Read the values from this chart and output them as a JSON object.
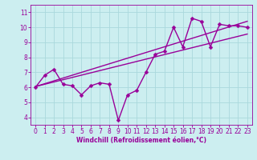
{
  "background_color": "#cceef0",
  "grid_color": "#aad8dc",
  "line_color": "#990099",
  "xlim": [
    -0.5,
    23.5
  ],
  "ylim": [
    3.5,
    11.5
  ],
  "yticks": [
    4,
    5,
    6,
    7,
    8,
    9,
    10,
    11
  ],
  "xticks": [
    0,
    1,
    2,
    3,
    4,
    5,
    6,
    7,
    8,
    9,
    10,
    11,
    12,
    13,
    14,
    15,
    16,
    17,
    18,
    19,
    20,
    21,
    22,
    23
  ],
  "xlabel": "Windchill (Refroidissement éolien,°C)",
  "scatter_x": [
    0,
    1,
    2,
    3,
    4,
    5,
    6,
    7,
    8,
    9,
    10,
    11,
    12,
    13,
    14,
    15,
    16,
    17,
    18,
    19,
    20,
    21,
    22,
    23
  ],
  "scatter_y": [
    6.0,
    6.8,
    7.2,
    6.2,
    6.1,
    5.5,
    6.1,
    6.3,
    6.2,
    3.8,
    5.5,
    5.8,
    7.0,
    8.2,
    8.4,
    10.0,
    8.7,
    10.6,
    10.4,
    8.7,
    10.2,
    10.1,
    10.1,
    10.0
  ],
  "line1_x": [
    0,
    23
  ],
  "line1_y": [
    6.05,
    10.4
  ],
  "line2_x": [
    0,
    23
  ],
  "line2_y": [
    6.05,
    9.55
  ],
  "line_width": 1.0,
  "marker_size": 2.5,
  "tick_fontsize": 5.5,
  "xlabel_fontsize": 5.5
}
